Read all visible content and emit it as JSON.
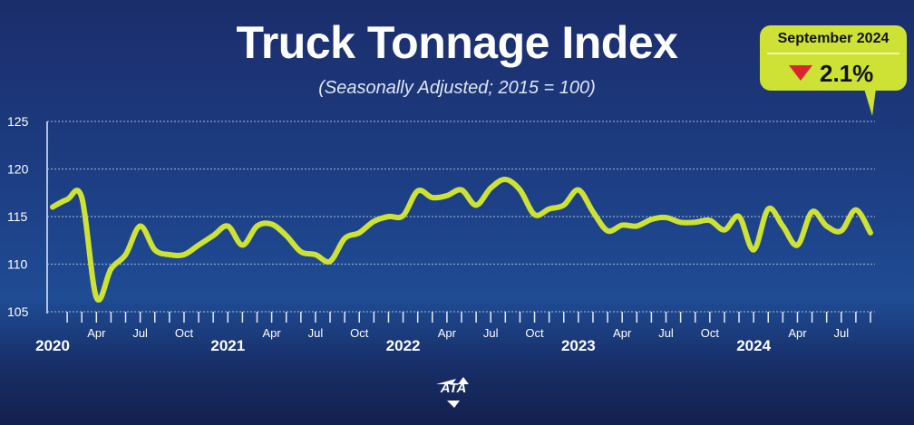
{
  "chart_data": {
    "type": "line",
    "title": "Truck Tonnage Index",
    "subtitle": "(Seasonally Adjusted; 2015 = 100)",
    "ylim": [
      105,
      125
    ],
    "yticks": [
      125,
      120,
      115,
      110,
      105
    ],
    "grid": true,
    "line_color": "#cde234",
    "x_start": "2020-01",
    "x_end": "2024-09",
    "month_labels": [
      "Apr",
      "Jul",
      "Oct"
    ],
    "year_labels": [
      "2020",
      "2021",
      "2022",
      "2023",
      "2024"
    ],
    "x": [
      "2020-01",
      "2020-02",
      "2020-03",
      "2020-04",
      "2020-05",
      "2020-06",
      "2020-07",
      "2020-08",
      "2020-09",
      "2020-10",
      "2020-11",
      "2020-12",
      "2021-01",
      "2021-02",
      "2021-03",
      "2021-04",
      "2021-05",
      "2021-06",
      "2021-07",
      "2021-08",
      "2021-09",
      "2021-10",
      "2021-11",
      "2021-12",
      "2022-01",
      "2022-02",
      "2022-03",
      "2022-04",
      "2022-05",
      "2022-06",
      "2022-07",
      "2022-08",
      "2022-09",
      "2022-10",
      "2022-11",
      "2022-12",
      "2023-01",
      "2023-02",
      "2023-03",
      "2023-04",
      "2023-05",
      "2023-06",
      "2023-07",
      "2023-08",
      "2023-09",
      "2023-10",
      "2023-11",
      "2023-12",
      "2024-01",
      "2024-02",
      "2024-03",
      "2024-04",
      "2024-05",
      "2024-06",
      "2024-07",
      "2024-08",
      "2024-09"
    ],
    "values": [
      116.0,
      116.8,
      117.0,
      106.5,
      109.5,
      111.0,
      114.0,
      111.5,
      111.0,
      111.0,
      112.0,
      113.0,
      114.0,
      112.0,
      114.0,
      114.2,
      113.0,
      111.3,
      111.0,
      110.3,
      112.7,
      113.3,
      114.5,
      115.0,
      115.1,
      117.7,
      117.0,
      117.2,
      117.8,
      116.2,
      118.0,
      118.9,
      117.8,
      115.2,
      115.8,
      116.2,
      117.8,
      115.5,
      113.5,
      114.1,
      114.0,
      114.7,
      114.9,
      114.4,
      114.4,
      114.6,
      113.6,
      115.0,
      111.5,
      115.8,
      114.0,
      112.0,
      115.5,
      114.0,
      113.5,
      115.7,
      113.3
    ]
  },
  "badge": {
    "period": "September 2024",
    "change": "2.1%",
    "direction": "down",
    "arrow_color": "#d9262c"
  },
  "logo": "ATA"
}
